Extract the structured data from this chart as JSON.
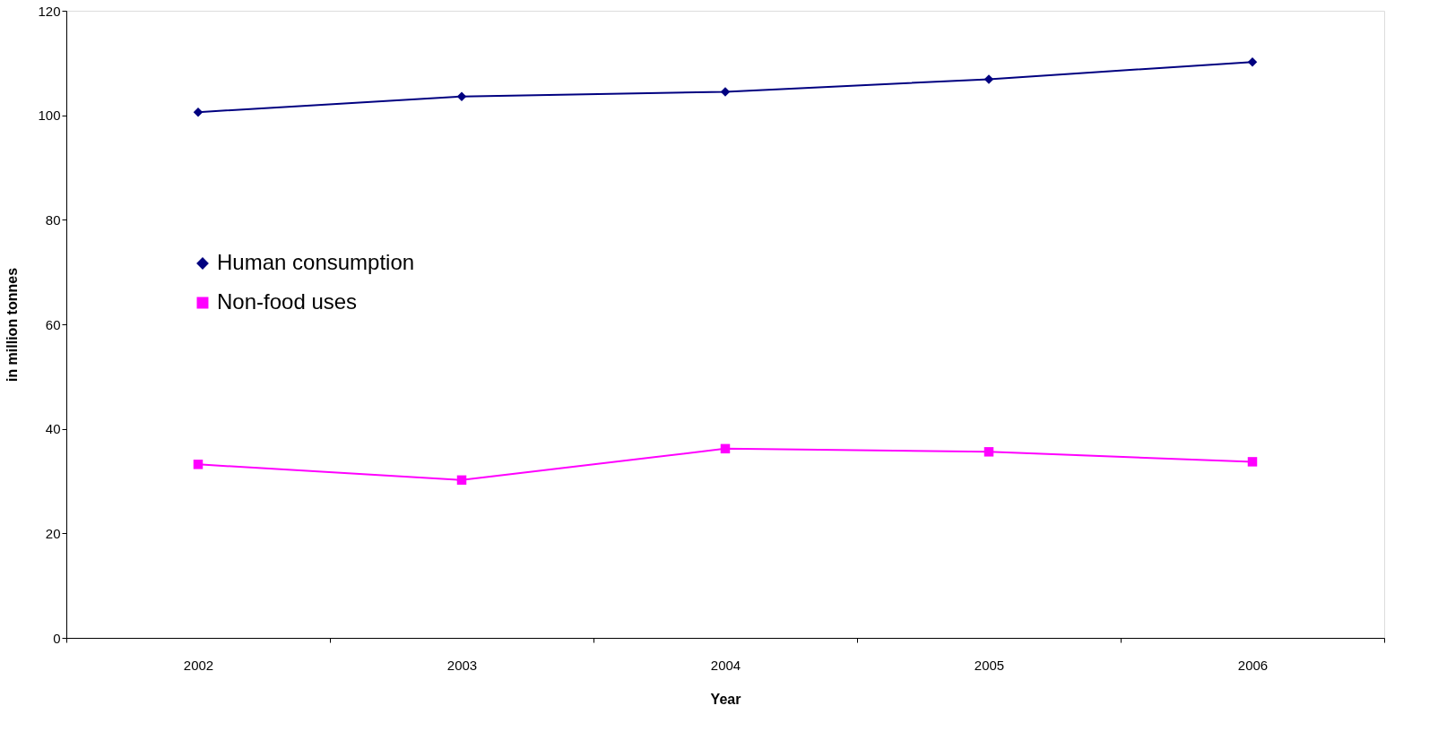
{
  "chart_data": {
    "type": "line",
    "xlabel": "Year",
    "ylabel": "in million tonnes",
    "categories": [
      "2002",
      "2003",
      "2004",
      "2005",
      "2006"
    ],
    "series": [
      {
        "name": "Human consumption",
        "color": "#000080",
        "marker": "diamond",
        "values": [
          100.6,
          103.6,
          104.5,
          106.9,
          110.2
        ]
      },
      {
        "name": "Non-food uses",
        "color": "#ff00ff",
        "marker": "square",
        "values": [
          33.2,
          30.2,
          36.2,
          35.6,
          33.7
        ]
      }
    ],
    "ylim": [
      0,
      120
    ],
    "yticks": [
      0,
      20,
      40,
      60,
      80,
      100,
      120
    ],
    "grid": false,
    "legend": "left"
  }
}
